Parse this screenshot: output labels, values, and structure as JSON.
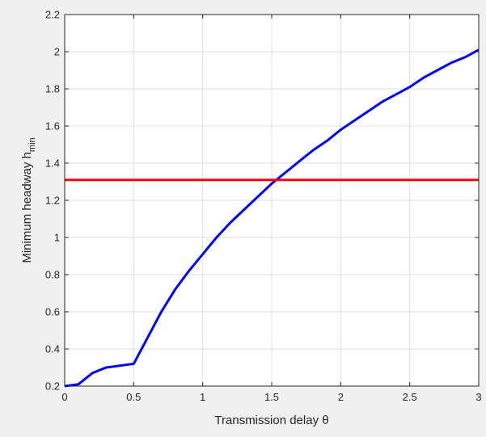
{
  "chart_data": {
    "type": "line",
    "title": "",
    "xlabel": "Transmission delay θ",
    "ylabel": {
      "main": "Minimum headway h",
      "subscript": "min"
    },
    "xlim": [
      0,
      3
    ],
    "ylim": [
      0.2,
      2.2
    ],
    "xticks": [
      0,
      0.5,
      1,
      1.5,
      2,
      2.5,
      3
    ],
    "xtick_labels": [
      "0",
      "0.5",
      "1",
      "1.5",
      "2",
      "2.5",
      "3"
    ],
    "yticks": [
      0.2,
      0.4,
      0.6,
      0.8,
      1,
      1.2,
      1.4,
      1.6,
      1.8,
      2,
      2.2
    ],
    "ytick_labels": [
      "0.2",
      "0.4",
      "0.6",
      "0.8",
      "1",
      "1.2",
      "1.4",
      "1.6",
      "1.8",
      "2",
      "2.2"
    ],
    "grid": true,
    "series": [
      {
        "color": "#0000ff",
        "x": [
          0,
          0.1,
          0.2,
          0.3,
          0.4,
          0.5,
          0.6,
          0.7,
          0.8,
          0.9,
          1.0,
          1.1,
          1.2,
          1.3,
          1.4,
          1.5,
          1.6,
          1.7,
          1.8,
          1.9,
          2.0,
          2.1,
          2.2,
          2.3,
          2.4,
          2.5,
          2.6,
          2.7,
          2.8,
          2.9,
          3.0
        ],
        "y": [
          0.2,
          0.21,
          0.27,
          0.3,
          0.31,
          0.32,
          0.46,
          0.6,
          0.72,
          0.82,
          0.91,
          1.0,
          1.08,
          1.15,
          1.22,
          1.29,
          1.35,
          1.41,
          1.47,
          1.52,
          1.58,
          1.63,
          1.68,
          1.73,
          1.77,
          1.81,
          1.86,
          1.9,
          1.94,
          1.97,
          2.01
        ]
      },
      {
        "color": "#ff0000",
        "x": [
          0,
          3
        ],
        "y": [
          1.31,
          1.31
        ]
      }
    ]
  }
}
